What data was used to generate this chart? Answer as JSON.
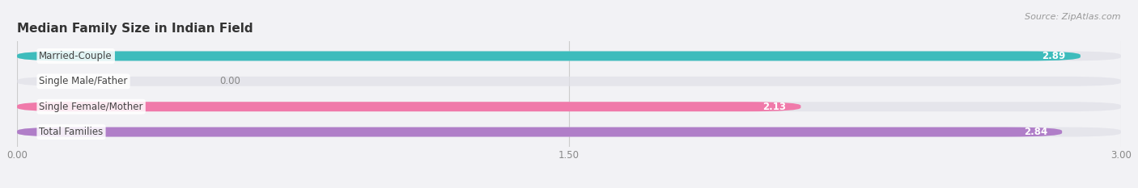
{
  "title": "Median Family Size in Indian Field",
  "source": "Source: ZipAtlas.com",
  "categories": [
    "Married-Couple",
    "Single Male/Father",
    "Single Female/Mother",
    "Total Families"
  ],
  "values": [
    2.89,
    0.0,
    2.13,
    2.84
  ],
  "bar_colors": [
    "#3dbcbc",
    "#aabce8",
    "#f07aaa",
    "#b07ec8"
  ],
  "xlim": [
    0,
    3.0
  ],
  "xticks": [
    0.0,
    1.5,
    3.0
  ],
  "xtick_labels": [
    "0.00",
    "1.50",
    "3.00"
  ],
  "label_fontsize": 8.5,
  "title_fontsize": 11,
  "value_fontsize": 8.5,
  "background_color": "#f2f2f5",
  "bar_bg_color": "#e0e0e8",
  "bar_height": 0.38,
  "bar_spacing": 1.0
}
